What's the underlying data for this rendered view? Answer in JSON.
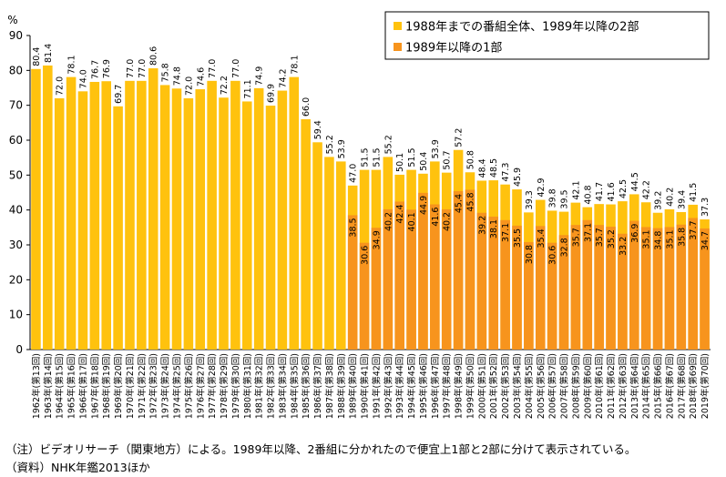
{
  "chart_data": {
    "type": "bar",
    "ylabel": "%",
    "ylim": [
      0,
      90
    ],
    "yticks": [
      0,
      10,
      20,
      30,
      40,
      50,
      60,
      70,
      80,
      90
    ],
    "grid": false,
    "legend_position": "top-right",
    "colors": {
      "total": "#FFC20E",
      "part1": "#F7941D"
    },
    "categories": [
      "1962年(第13回)",
      "1963年(第14回)",
      "1964年(第15回)",
      "1965年(第16回)",
      "1966年(第17回)",
      "1967年(第18回)",
      "1968年(第19回)",
      "1969年(第20回)",
      "1970年(第21回)",
      "1971年(第22回)",
      "1972年(第23回)",
      "1973年(第24回)",
      "1974年(第25回)",
      "1975年(第26回)",
      "1976年(第27回)",
      "1977年(第28回)",
      "1978年(第29回)",
      "1979年(第30回)",
      "1980年(第31回)",
      "1981年(第32回)",
      "1982年(第33回)",
      "1983年(第34回)",
      "1984年(第35回)",
      "1985年(第36回)",
      "1986年(第37回)",
      "1987年(第38回)",
      "1988年(第39回)",
      "1989年(第40回)",
      "1990年(第41回)",
      "1991年(第42回)",
      "1992年(第43回)",
      "1993年(第44回)",
      "1994年(第45回)",
      "1995年(第46回)",
      "1996年(第47回)",
      "1997年(第48回)",
      "1998年(第49回)",
      "1999年(第50回)",
      "2000年(第51回)",
      "2001年(第52回)",
      "2002年(第53回)",
      "2003年(第54回)",
      "2004年(第55回)",
      "2005年(第56回)",
      "2006年(第57回)",
      "2007年(第58回)",
      "2008年(第59回)",
      "2009年(第60回)",
      "2010年(第61回)",
      "2011年(第62回)",
      "2012年(第63回)",
      "2013年(第64回)",
      "2014年(第65回)",
      "2015年(第66回)",
      "2016年(第67回)",
      "2017年(第68回)",
      "2018年(第69回)",
      "2019年(第70回)"
    ],
    "series": [
      {
        "name": "1988年までの番組全体、1989年以降の2部",
        "values": [
          80.4,
          81.4,
          72.0,
          78.1,
          74.0,
          76.7,
          76.9,
          69.7,
          77.0,
          77.0,
          80.6,
          75.8,
          74.8,
          72.0,
          74.6,
          77.0,
          72.2,
          77.0,
          71.1,
          74.9,
          69.9,
          74.2,
          78.1,
          66.0,
          59.4,
          55.2,
          53.9,
          47.0,
          51.5,
          51.5,
          55.2,
          50.1,
          51.5,
          50.4,
          53.9,
          50.7,
          57.2,
          50.8,
          48.4,
          48.5,
          47.3,
          45.9,
          39.3,
          42.9,
          39.8,
          39.5,
          42.1,
          40.8,
          41.7,
          41.6,
          42.5,
          44.5,
          42.2,
          39.2,
          40.2,
          39.4,
          41.5,
          37.3
        ],
        "labels": [
          "80.4",
          "81.4",
          "72.0",
          "78.1",
          "74.0",
          "76.7",
          "76.9",
          "69.7",
          "77.0",
          "77.0",
          "80.6",
          "75.8",
          "74.8",
          "72.0",
          "74.6",
          "77.0",
          "72.2",
          "77.0",
          "71.1",
          "74.9",
          "69.9",
          "74.2",
          "78.1",
          "66.0",
          "59.4",
          "55.2",
          "53.9",
          "47.0",
          "51.5",
          "51.5",
          "55.2",
          "50.1",
          "51.5",
          "50.4",
          "53.9",
          "50.7",
          "57.2",
          "50.8",
          "48.4",
          "48.5",
          "47.3",
          "45.9",
          "39.3",
          "42.9",
          "39.8",
          "39.5",
          "42.1",
          "40.8",
          "41.7",
          "41.6",
          "42.5",
          "44.5",
          "42.2",
          "39.2",
          "40.2",
          "39.4",
          "41.5",
          "37.3"
        ]
      },
      {
        "name": "1989年以降の1部",
        "values": [
          null,
          null,
          null,
          null,
          null,
          null,
          null,
          null,
          null,
          null,
          null,
          null,
          null,
          null,
          null,
          null,
          null,
          null,
          null,
          null,
          null,
          null,
          null,
          null,
          null,
          null,
          null,
          38.5,
          30.6,
          34.9,
          40.2,
          42.4,
          40.1,
          44.9,
          41.6,
          40.2,
          45.4,
          45.8,
          39.2,
          38.1,
          37.1,
          35.5,
          30.8,
          35.4,
          30.6,
          32.8,
          35.7,
          37.1,
          35.7,
          35.2,
          33.2,
          36.9,
          35.1,
          34.8,
          35.1,
          35.8,
          37.7,
          34.7
        ],
        "labels": [
          "",
          "",
          "",
          "",
          "",
          "",
          "",
          "",
          "",
          "",
          "",
          "",
          "",
          "",
          "",
          "",
          "",
          "",
          "",
          "",
          "",
          "",
          "",
          "",
          "",
          "",
          "",
          "38.5",
          "30.6",
          "34.9",
          "40.2",
          "42.4",
          "40.1",
          "44.9",
          "41.6",
          "40.2",
          "45.4",
          "45.8",
          "39.2",
          "38.1",
          "37.1",
          "35.5",
          "30.8",
          "35.4",
          "30.6",
          "32.8",
          "35.7",
          "37.1",
          "35.7",
          "35.2",
          "33.2",
          "36.9",
          "35.1",
          "34.8",
          "35.1",
          "35.8",
          "37.7",
          "34.7"
        ]
      }
    ]
  },
  "notes": {
    "line1": "（注）ビデオリサーチ（関東地方）による。1989年以降、2番組に分かれたので便宜上1部と2部に分けて表示されている。",
    "line2": "（資料）NHK年鑑2013ほか"
  }
}
